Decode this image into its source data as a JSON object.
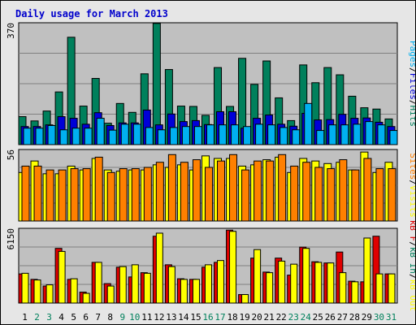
{
  "title": "Daily usage for March 2013",
  "colors": {
    "panel_bg": "#c0c0c0",
    "frame_bg": "#e6e6e6",
    "title": "#0000cc",
    "hits": "#00805c",
    "files": "#0000d8",
    "pages": "#00b0f0",
    "visits": "#ffff00",
    "sites": "#ff8000",
    "kbin": "#00805c",
    "kbout": "#ffff00",
    "kbf": "#e00000",
    "day_weekday": "#000000",
    "day_weekend": "#00805c"
  },
  "chart_data": [
    {
      "type": "bar",
      "title": "Daily usage for March 2013",
      "ylabel_parts": [
        "Pages",
        "/",
        "Files",
        "/",
        "Hits"
      ],
      "ymax_label": "370",
      "ylim": [
        0,
        370
      ],
      "grid": true,
      "categories": [
        "1",
        "2",
        "3",
        "4",
        "5",
        "6",
        "7",
        "8",
        "9",
        "10",
        "11",
        "12",
        "13",
        "14",
        "15",
        "16",
        "17",
        "18",
        "19",
        "20",
        "21",
        "22",
        "23",
        "24",
        "25",
        "26",
        "27",
        "28",
        "29",
        "30",
        "31"
      ],
      "series": [
        {
          "name": "Hits",
          "values": [
            85,
            72,
            102,
            160,
            326,
            117,
            201,
            65,
            125,
            98,
            215,
            368,
            228,
            117,
            116,
            89,
            234,
            116,
            262,
            183,
            254,
            142,
            73,
            242,
            188,
            234,
            212,
            147,
            112,
            108,
            78
          ]
        },
        {
          "name": "Files",
          "values": [
            55,
            55,
            60,
            85,
            80,
            62,
            97,
            58,
            66,
            66,
            105,
            60,
            93,
            70,
            73,
            61,
            100,
            100,
            50,
            80,
            90,
            62,
            56,
            95,
            75,
            76,
            92,
            80,
            81,
            68,
            55
          ]
        },
        {
          "name": "Pages",
          "values": [
            50,
            50,
            58,
            45,
            50,
            50,
            80,
            44,
            62,
            62,
            52,
            45,
            52,
            55,
            55,
            60,
            60,
            60,
            55,
            62,
            60,
            52,
            45,
            125,
            43,
            60,
            60,
            62,
            70,
            60,
            43
          ]
        }
      ]
    },
    {
      "type": "bar",
      "ylabel_parts": [
        "Sites",
        "/",
        "Visits"
      ],
      "ymax_label": "56",
      "ylim": [
        0,
        56
      ],
      "grid": true,
      "categories": [
        "1",
        "2",
        "3",
        "4",
        "5",
        "6",
        "7",
        "8",
        "9",
        "10",
        "11",
        "12",
        "13",
        "14",
        "15",
        "16",
        "17",
        "18",
        "19",
        "20",
        "21",
        "22",
        "23",
        "24",
        "25",
        "26",
        "27",
        "28",
        "29",
        "30",
        "31"
      ],
      "series": [
        {
          "name": "Visits",
          "values": [
            38,
            47,
            37,
            37,
            43,
            40,
            49,
            40,
            39,
            40,
            40,
            44,
            42,
            44,
            40,
            51,
            49,
            49,
            43,
            44,
            48,
            50,
            38,
            49,
            47,
            45,
            46,
            40,
            54,
            38,
            46
          ]
        },
        {
          "name": "Sites",
          "values": [
            43,
            43,
            40,
            40,
            41,
            41,
            50,
            38,
            41,
            41,
            42,
            46,
            52,
            46,
            48,
            42,
            47,
            52,
            40,
            47,
            47,
            52,
            43,
            46,
            42,
            41,
            48,
            40,
            49,
            41,
            41
          ]
        }
      ]
    },
    {
      "type": "bar",
      "ylabel_parts": [
        "kB F",
        "/",
        "kB In",
        "/",
        "kB Out"
      ],
      "ymax_label": "6150",
      "ylim": [
        0,
        6150
      ],
      "grid": true,
      "categories": [
        "1",
        "2",
        "3",
        "4",
        "5",
        "6",
        "7",
        "8",
        "9",
        "10",
        "11",
        "12",
        "13",
        "14",
        "15",
        "16",
        "17",
        "18",
        "19",
        "20",
        "21",
        "22",
        "23",
        "24",
        "25",
        "26",
        "27",
        "28",
        "29",
        "30",
        "31"
      ],
      "series": [
        {
          "name": "kB F",
          "values": [
            2400,
            1950,
            1400,
            4500,
            1950,
            900,
            3350,
            1600,
            2950,
            2150,
            2500,
            5500,
            3150,
            2000,
            1950,
            2950,
            3350,
            6000,
            700,
            3700,
            2550,
            3700,
            2300,
            4600,
            3400,
            3300,
            4200,
            1800,
            1750,
            5500,
            2400
          ]
        },
        {
          "name": "kB In",
          "values": [
            0,
            0,
            0,
            0,
            0,
            0,
            0,
            0,
            0,
            0,
            0,
            0,
            0,
            0,
            0,
            0,
            0,
            0,
            0,
            0,
            0,
            0,
            0,
            0,
            0,
            0,
            0,
            0,
            0,
            0,
            0
          ]
        },
        {
          "name": "kB Out",
          "values": [
            2450,
            1900,
            1500,
            4250,
            2000,
            800,
            3350,
            1400,
            3000,
            3150,
            2450,
            5750,
            3000,
            1950,
            1950,
            3150,
            3500,
            5900,
            700,
            4400,
            2500,
            3450,
            3200,
            4500,
            3350,
            3300,
            2500,
            1750,
            5350,
            2400,
            2400
          ]
        }
      ]
    }
  ]
}
